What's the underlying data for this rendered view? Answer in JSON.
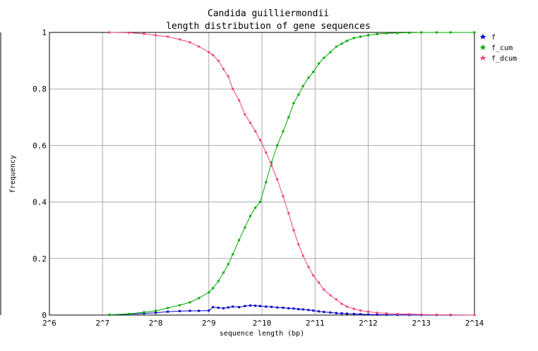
{
  "chart_data": {
    "type": "line",
    "title": "Candida guilliermondii",
    "subtitle": "length distribution of gene sequences",
    "xlabel": "sequence length (bp)",
    "ylabel": "frequency",
    "x_scale": "log2",
    "xlim": [
      64,
      16384
    ],
    "ylim": [
      0,
      1
    ],
    "x_ticks": [
      {
        "value": 64,
        "label": "2^6"
      },
      {
        "value": 128,
        "label": "2^7"
      },
      {
        "value": 256,
        "label": "2^8"
      },
      {
        "value": 512,
        "label": "2^9"
      },
      {
        "value": 1024,
        "label": "2^10"
      },
      {
        "value": 2048,
        "label": "2^11"
      },
      {
        "value": 4096,
        "label": "2^12"
      },
      {
        "value": 8192,
        "label": "2^13"
      },
      {
        "value": 16384,
        "label": "2^14"
      }
    ],
    "y_ticks": [
      {
        "value": 0,
        "label": "0"
      },
      {
        "value": 0.2,
        "label": "0.2"
      },
      {
        "value": 0.4,
        "label": "0.4"
      },
      {
        "value": 0.6,
        "label": "0.6"
      },
      {
        "value": 0.8,
        "label": "0.8"
      },
      {
        "value": 1,
        "label": "1"
      }
    ],
    "grid": true,
    "legend_position": "top-right outside",
    "series": [
      {
        "name": "f",
        "color": "#0000cc",
        "points": [
          [
            140,
            0.001
          ],
          [
            180,
            0.003
          ],
          [
            220,
            0.006
          ],
          [
            256,
            0.008
          ],
          [
            300,
            0.012
          ],
          [
            350,
            0.014
          ],
          [
            400,
            0.015
          ],
          [
            450,
            0.015
          ],
          [
            512,
            0.016
          ],
          [
            540,
            0.028
          ],
          [
            580,
            0.026
          ],
          [
            620,
            0.024
          ],
          [
            660,
            0.027
          ],
          [
            700,
            0.03
          ],
          [
            760,
            0.028
          ],
          [
            820,
            0.032
          ],
          [
            880,
            0.034
          ],
          [
            940,
            0.033
          ],
          [
            1000,
            0.032
          ],
          [
            1080,
            0.03
          ],
          [
            1160,
            0.029
          ],
          [
            1250,
            0.027
          ],
          [
            1350,
            0.026
          ],
          [
            1450,
            0.024
          ],
          [
            1550,
            0.023
          ],
          [
            1650,
            0.021
          ],
          [
            1750,
            0.02
          ],
          [
            1880,
            0.018
          ],
          [
            2000,
            0.016
          ],
          [
            2150,
            0.013
          ],
          [
            2300,
            0.011
          ],
          [
            2500,
            0.009
          ],
          [
            2700,
            0.007
          ],
          [
            2900,
            0.006
          ],
          [
            3100,
            0.005
          ],
          [
            3400,
            0.004
          ],
          [
            3700,
            0.003
          ],
          [
            4100,
            0.002
          ],
          [
            4600,
            0.0015
          ],
          [
            5200,
            0.001
          ],
          [
            6000,
            0.0007
          ],
          [
            7000,
            0.0005
          ],
          [
            8192,
            0.0003
          ],
          [
            10000,
            0.0002
          ],
          [
            12000,
            0.0001
          ],
          [
            16384,
            0.0
          ]
        ]
      },
      {
        "name": "f_cum",
        "color": "#00aa00",
        "points": [
          [
            140,
            0.001
          ],
          [
            180,
            0.004
          ],
          [
            220,
            0.01
          ],
          [
            256,
            0.015
          ],
          [
            300,
            0.025
          ],
          [
            350,
            0.035
          ],
          [
            400,
            0.045
          ],
          [
            450,
            0.06
          ],
          [
            512,
            0.08
          ],
          [
            540,
            0.095
          ],
          [
            580,
            0.12
          ],
          [
            620,
            0.15
          ],
          [
            660,
            0.18
          ],
          [
            700,
            0.215
          ],
          [
            760,
            0.265
          ],
          [
            820,
            0.31
          ],
          [
            880,
            0.35
          ],
          [
            940,
            0.38
          ],
          [
            1000,
            0.4
          ],
          [
            1080,
            0.47
          ],
          [
            1160,
            0.54
          ],
          [
            1250,
            0.6
          ],
          [
            1350,
            0.65
          ],
          [
            1450,
            0.7
          ],
          [
            1550,
            0.75
          ],
          [
            1650,
            0.78
          ],
          [
            1750,
            0.81
          ],
          [
            1880,
            0.84
          ],
          [
            2000,
            0.86
          ],
          [
            2150,
            0.89
          ],
          [
            2300,
            0.91
          ],
          [
            2500,
            0.93
          ],
          [
            2700,
            0.95
          ],
          [
            2900,
            0.96
          ],
          [
            3100,
            0.97
          ],
          [
            3400,
            0.98
          ],
          [
            3700,
            0.985
          ],
          [
            4100,
            0.99
          ],
          [
            4600,
            0.994
          ],
          [
            5200,
            0.997
          ],
          [
            6000,
            0.998
          ],
          [
            7000,
            0.999
          ],
          [
            8192,
            1.0
          ],
          [
            10000,
            1.0
          ],
          [
            12000,
            1.0
          ],
          [
            16384,
            1.0
          ]
        ]
      },
      {
        "name": "f_dcum",
        "color": "#ee4477",
        "points": [
          [
            140,
            1.0
          ],
          [
            180,
            0.999
          ],
          [
            220,
            0.995
          ],
          [
            256,
            0.99
          ],
          [
            300,
            0.985
          ],
          [
            350,
            0.975
          ],
          [
            400,
            0.965
          ],
          [
            450,
            0.95
          ],
          [
            512,
            0.93
          ],
          [
            540,
            0.92
          ],
          [
            580,
            0.9
          ],
          [
            620,
            0.87
          ],
          [
            660,
            0.845
          ],
          [
            700,
            0.8
          ],
          [
            760,
            0.76
          ],
          [
            820,
            0.71
          ],
          [
            880,
            0.68
          ],
          [
            940,
            0.65
          ],
          [
            1000,
            0.62
          ],
          [
            1080,
            0.575
          ],
          [
            1160,
            0.53
          ],
          [
            1250,
            0.48
          ],
          [
            1350,
            0.42
          ],
          [
            1450,
            0.36
          ],
          [
            1550,
            0.3
          ],
          [
            1650,
            0.25
          ],
          [
            1750,
            0.21
          ],
          [
            1880,
            0.17
          ],
          [
            2000,
            0.14
          ],
          [
            2150,
            0.115
          ],
          [
            2300,
            0.09
          ],
          [
            2500,
            0.07
          ],
          [
            2700,
            0.055
          ],
          [
            2900,
            0.04
          ],
          [
            3100,
            0.03
          ],
          [
            3400,
            0.022
          ],
          [
            3700,
            0.016
          ],
          [
            4100,
            0.012
          ],
          [
            4600,
            0.008
          ],
          [
            5200,
            0.006
          ],
          [
            6000,
            0.004
          ],
          [
            7000,
            0.003
          ],
          [
            8192,
            0.002
          ],
          [
            10000,
            0.001
          ],
          [
            12000,
            0.001
          ],
          [
            16384,
            0.0
          ]
        ]
      }
    ]
  }
}
